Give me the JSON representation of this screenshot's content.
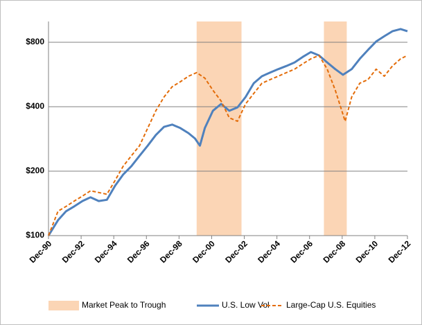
{
  "chart_data": {
    "type": "line",
    "log_scale": true,
    "grid": true,
    "legend": "bottom",
    "shaded_regions": {
      "name": "Market Peak to Trough",
      "color": "#fbd5b5",
      "ranges": [
        [
          2000.0,
          2002.75
        ],
        [
          2007.8,
          2009.2
        ]
      ]
    },
    "xlim": [
      1990.92,
      2012.92
    ],
    "xticks": [
      {
        "value": 1990.92,
        "label": "Dec-90"
      },
      {
        "value": 1992.92,
        "label": "Dec-92"
      },
      {
        "value": 1994.92,
        "label": "Dec-94"
      },
      {
        "value": 1996.92,
        "label": "Dec-96"
      },
      {
        "value": 1998.92,
        "label": "Dec-98"
      },
      {
        "value": 2000.92,
        "label": "Dec-00"
      },
      {
        "value": 2002.92,
        "label": "Dec-02"
      },
      {
        "value": 2004.92,
        "label": "Dec-04"
      },
      {
        "value": 2006.92,
        "label": "Dec-06"
      },
      {
        "value": 2008.92,
        "label": "Dec-08"
      },
      {
        "value": 2010.92,
        "label": "Dec-10"
      },
      {
        "value": 2012.92,
        "label": "Dec-12"
      }
    ],
    "ylim": [
      100,
      1000
    ],
    "yticks": [
      {
        "value": 100,
        "label": "$100"
      },
      {
        "value": 200,
        "label": "$200"
      },
      {
        "value": 400,
        "label": "$400"
      },
      {
        "value": 800,
        "label": "$800"
      }
    ],
    "series": [
      {
        "name": "U.S. Low Vol",
        "color": "#4f81bd",
        "x": [
          1990.92,
          1991.5,
          1992,
          1992.5,
          1993,
          1993.5,
          1994,
          1994.5,
          1995,
          1995.5,
          1996,
          1996.5,
          1997,
          1997.5,
          1998,
          1998.5,
          1999,
          1999.5,
          1999.9,
          2000.2,
          2000.5,
          2001,
          2001.5,
          2002,
          2002.5,
          2003,
          2003.5,
          2004,
          2004.5,
          2005,
          2005.5,
          2006,
          2006.5,
          2007,
          2007.5,
          2008,
          2008.5,
          2008.97,
          2009.5,
          2010,
          2010.5,
          2011,
          2011.5,
          2012,
          2012.5,
          2012.92
        ],
        "values": [
          100,
          118,
          130,
          137,
          145,
          151,
          145,
          147,
          171,
          193,
          211,
          236,
          263,
          295,
          322,
          330,
          318,
          301,
          284,
          263,
          318,
          383,
          412,
          383,
          397,
          444,
          515,
          555,
          577,
          599,
          620,
          644,
          683,
          720,
          694,
          644,
          599,
          564,
          599,
          669,
          736,
          806,
          853,
          900,
          922,
          900
        ]
      },
      {
        "name": "Large-Cap U.S. Equities",
        "color": "#e36c09",
        "dashed": true,
        "x": [
          1990.92,
          1991.5,
          1992,
          1992.5,
          1993,
          1993.5,
          1994,
          1994.5,
          1995,
          1995.5,
          1996,
          1996.5,
          1997,
          1997.5,
          1998,
          1998.5,
          1999,
          1999.5,
          2000,
          2000.5,
          2001,
          2001.5,
          2002,
          2002.5,
          2003,
          2003.5,
          2004,
          2004.5,
          2005,
          2005.5,
          2006,
          2006.5,
          2007,
          2007.5,
          2008,
          2008.5,
          2009.1,
          2009.5,
          2010,
          2010.5,
          2011,
          2011.5,
          2012,
          2012.5,
          2012.92
        ],
        "values": [
          100,
          130,
          137,
          145,
          153,
          162,
          159,
          156,
          181,
          211,
          236,
          263,
          318,
          383,
          444,
          496,
          523,
          555,
          577,
          544,
          477,
          425,
          355,
          342,
          412,
          461,
          515,
          535,
          555,
          577,
          599,
          634,
          669,
          694,
          599,
          477,
          342,
          444,
          515,
          535,
          599,
          555,
          620,
          669,
          694
        ]
      }
    ]
  }
}
